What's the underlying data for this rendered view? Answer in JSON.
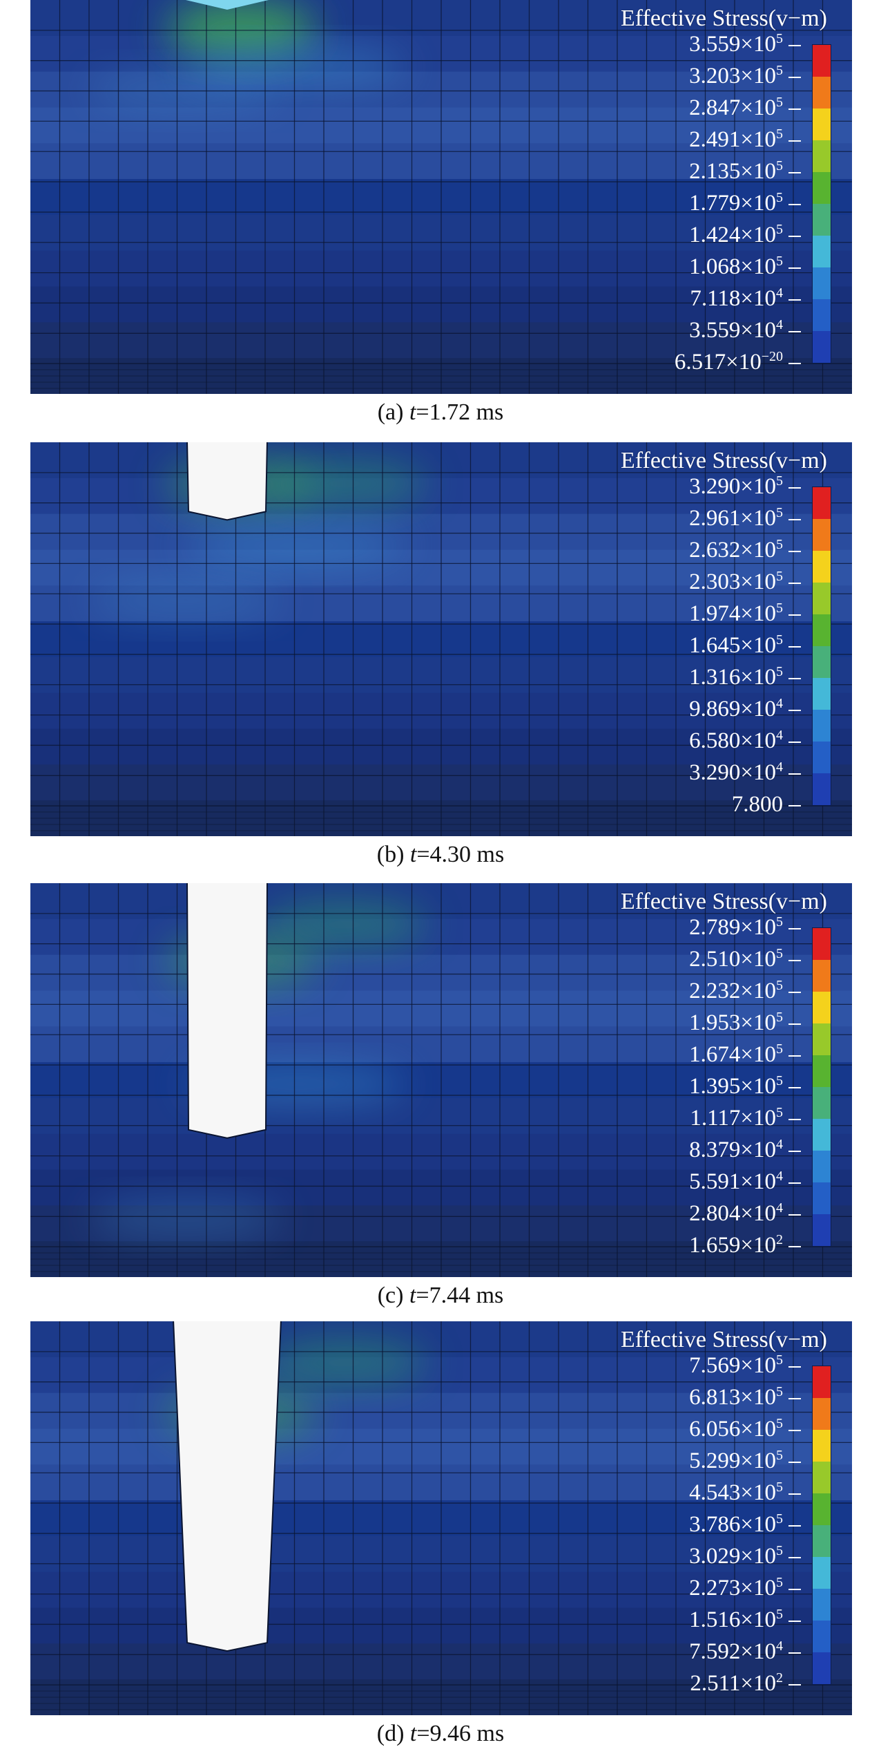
{
  "legend_title": "Effective Stress(v−m)",
  "colorbar_colors": [
    "#e02020",
    "#f07a1a",
    "#f4d21c",
    "#98c92a",
    "#58b330",
    "#48b07a",
    "#44b8d8",
    "#2d84d3",
    "#245fc6",
    "#1f3fb2"
  ],
  "panels": [
    {
      "caption_label": "(a)",
      "caption_var": "t",
      "caption_value": "=1.72 ms",
      "crater_depth": 0.02,
      "ticks": [
        {
          "m": "3.559",
          "e": "5"
        },
        {
          "m": "3.203",
          "e": "5"
        },
        {
          "m": "2.847",
          "e": "5"
        },
        {
          "m": "2.491",
          "e": "5"
        },
        {
          "m": "2.135",
          "e": "5"
        },
        {
          "m": "1.779",
          "e": "5"
        },
        {
          "m": "1.424",
          "e": "5"
        },
        {
          "m": "1.068",
          "e": "5"
        },
        {
          "m": "7.118",
          "e": "4"
        },
        {
          "m": "3.559",
          "e": "4"
        },
        {
          "m": "6.517",
          "e": "−20"
        }
      ]
    },
    {
      "caption_label": "(b)",
      "caption_var": "t",
      "caption_value": "=4.30 ms",
      "crater_depth": 0.19,
      "ticks": [
        {
          "m": "3.290",
          "e": "5"
        },
        {
          "m": "2.961",
          "e": "5"
        },
        {
          "m": "2.632",
          "e": "5"
        },
        {
          "m": "2.303",
          "e": "5"
        },
        {
          "m": "1.974",
          "e": "5"
        },
        {
          "m": "1.645",
          "e": "5"
        },
        {
          "m": "1.316",
          "e": "5"
        },
        {
          "m": "9.869",
          "e": "4"
        },
        {
          "m": "6.580",
          "e": "4"
        },
        {
          "m": "3.290",
          "e": "4"
        },
        {
          "m": "7.800",
          "e": ""
        }
      ]
    },
    {
      "caption_label": "(c)",
      "caption_var": "t",
      "caption_value": "=7.44 ms",
      "crater_depth": 0.64,
      "ticks": [
        {
          "m": "2.789",
          "e": "5"
        },
        {
          "m": "2.510",
          "e": "5"
        },
        {
          "m": "2.232",
          "e": "5"
        },
        {
          "m": "1.953",
          "e": "5"
        },
        {
          "m": "1.674",
          "e": "5"
        },
        {
          "m": "1.395",
          "e": "5"
        },
        {
          "m": "1.117",
          "e": "5"
        },
        {
          "m": "8.379",
          "e": "4"
        },
        {
          "m": "5.591",
          "e": "4"
        },
        {
          "m": "2.804",
          "e": "4"
        },
        {
          "m": "1.659",
          "e": "2"
        }
      ]
    },
    {
      "caption_label": "(d)",
      "caption_var": "t",
      "caption_value": "=9.46 ms",
      "crater_depth": 0.83,
      "ticks": [
        {
          "m": "7.569",
          "e": "5"
        },
        {
          "m": "6.813",
          "e": "5"
        },
        {
          "m": "6.056",
          "e": "5"
        },
        {
          "m": "5.299",
          "e": "5"
        },
        {
          "m": "4.543",
          "e": "5"
        },
        {
          "m": "3.786",
          "e": "5"
        },
        {
          "m": "3.029",
          "e": "5"
        },
        {
          "m": "2.273",
          "e": "5"
        },
        {
          "m": "1.516",
          "e": "5"
        },
        {
          "m": "7.592",
          "e": "4"
        },
        {
          "m": "2.511",
          "e": "2"
        }
      ]
    }
  ]
}
